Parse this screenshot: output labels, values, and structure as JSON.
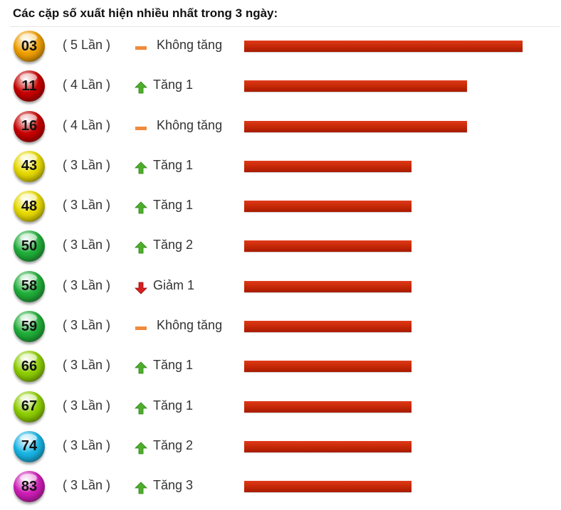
{
  "title": "Các cặp số xuất hiện nhiều nhất trong 3 ngày:",
  "colors": {
    "orange": "#f2a100",
    "red": "#c80000",
    "yellow": "#e9dc00",
    "green": "#21b03a",
    "lime": "#8fd000",
    "cyan": "#19b6e6",
    "magenta": "#d01db8",
    "bar": "#c82a08",
    "up": "#4caf2a",
    "down": "#d81e1e",
    "dash": "#f08a3c"
  },
  "max_count": 5,
  "rows": [
    {
      "number": "03",
      "color": "orange",
      "count_label": "( 5 Lần )",
      "count": 5,
      "trend": "none",
      "trend_label": "Không tăng"
    },
    {
      "number": "11",
      "color": "red",
      "count_label": "( 4 Lần )",
      "count": 4,
      "trend": "up",
      "trend_label": "Tăng 1"
    },
    {
      "number": "16",
      "color": "red",
      "count_label": "( 4 Lần )",
      "count": 4,
      "trend": "none",
      "trend_label": "Không tăng"
    },
    {
      "number": "43",
      "color": "yellow",
      "count_label": "( 3 Lần )",
      "count": 3,
      "trend": "up",
      "trend_label": "Tăng 1"
    },
    {
      "number": "48",
      "color": "yellow",
      "count_label": "( 3 Lần )",
      "count": 3,
      "trend": "up",
      "trend_label": "Tăng 1"
    },
    {
      "number": "50",
      "color": "green",
      "count_label": "( 3 Lần )",
      "count": 3,
      "trend": "up",
      "trend_label": "Tăng 2"
    },
    {
      "number": "58",
      "color": "green",
      "count_label": "( 3 Lần )",
      "count": 3,
      "trend": "down",
      "trend_label": "Giảm 1"
    },
    {
      "number": "59",
      "color": "green",
      "count_label": "( 3 Lần )",
      "count": 3,
      "trend": "none",
      "trend_label": "Không tăng"
    },
    {
      "number": "66",
      "color": "lime",
      "count_label": "( 3 Lần )",
      "count": 3,
      "trend": "up",
      "trend_label": "Tăng 1"
    },
    {
      "number": "67",
      "color": "lime",
      "count_label": "( 3 Lần )",
      "count": 3,
      "trend": "up",
      "trend_label": "Tăng 1"
    },
    {
      "number": "74",
      "color": "cyan",
      "count_label": "( 3 Lần )",
      "count": 3,
      "trend": "up",
      "trend_label": "Tăng 2"
    },
    {
      "number": "83",
      "color": "magenta",
      "count_label": "( 3 Lần )",
      "count": 3,
      "trend": "up",
      "trend_label": "Tăng 3"
    }
  ]
}
